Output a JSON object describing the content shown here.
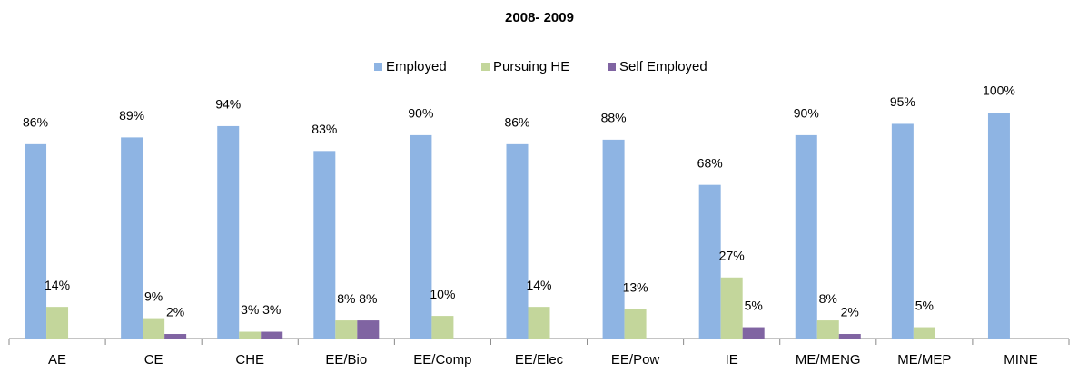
{
  "chart_data": {
    "type": "bar",
    "title": "2008- 2009",
    "categories": [
      "AE",
      "CE",
      "CHE",
      "EE/Bio",
      "EE/Comp",
      "EE/Elec",
      "EE/Pow",
      "IE",
      "ME/MENG",
      "ME/MEP",
      "MINE"
    ],
    "series": [
      {
        "name": "Employed",
        "color": "#8EB4E3",
        "values": [
          86,
          89,
          94,
          83,
          90,
          86,
          88,
          68,
          90,
          95,
          100
        ],
        "value_labels": [
          "86%",
          "89%",
          "94%",
          "83%",
          "90%",
          "86%",
          "88%",
          "68%",
          "90%",
          "95%",
          "100%"
        ]
      },
      {
        "name": "Pursuing HE",
        "color": "#C3D69B",
        "values": [
          14,
          9,
          3,
          8,
          10,
          14,
          13,
          27,
          8,
          5,
          null
        ],
        "value_labels": [
          "14%",
          "9%",
          "3%",
          "8%",
          "10%",
          "14%",
          "13%",
          "27%",
          "8%",
          "5%",
          null
        ]
      },
      {
        "name": "Self Employed",
        "color": "#8064A2",
        "values": [
          null,
          2,
          3,
          8,
          null,
          null,
          null,
          5,
          2,
          null,
          null
        ],
        "value_labels": [
          null,
          "2%",
          "3%",
          "8%",
          null,
          null,
          null,
          "5%",
          "2%",
          null,
          null
        ]
      }
    ],
    "ylim": [
      0,
      100
    ],
    "legend": "top"
  }
}
